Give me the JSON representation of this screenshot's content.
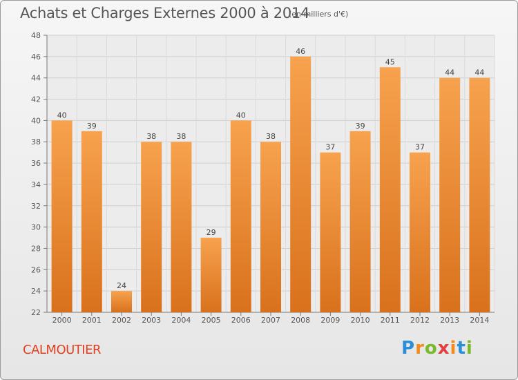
{
  "title": "Achats et Charges Externes 2000 à 2014",
  "subtitle": "(en milliers d'€)",
  "town": "CALMOUTIER",
  "logo": {
    "letters": [
      "P",
      "r",
      "o",
      "x",
      "i",
      "t",
      "i"
    ],
    "colors": [
      "#2a8fd8",
      "#f28b1d",
      "#7ab929",
      "#e53e3e",
      "#f28b1d",
      "#2a8fd8",
      "#7ab929"
    ]
  },
  "colors": {
    "bar_top": "#f7a24e",
    "bar_bottom": "#d9711c",
    "text": "#555555",
    "town": "#e0401f"
  },
  "chart_data": {
    "type": "bar",
    "title": "Achats et Charges Externes 2000 à 2014",
    "xlabel": "",
    "ylabel": "",
    "categories": [
      "2000",
      "2001",
      "2002",
      "2003",
      "2004",
      "2005",
      "2006",
      "2007",
      "2008",
      "2009",
      "2010",
      "2011",
      "2012",
      "2013",
      "2014"
    ],
    "values": [
      40,
      39,
      24,
      38,
      38,
      29,
      40,
      38,
      46,
      37,
      39,
      45,
      37,
      44,
      44
    ],
    "ylim": [
      22,
      48
    ],
    "yticks": [
      22,
      24,
      26,
      28,
      30,
      32,
      34,
      36,
      38,
      40,
      42,
      44,
      46,
      48
    ],
    "grid": true
  }
}
